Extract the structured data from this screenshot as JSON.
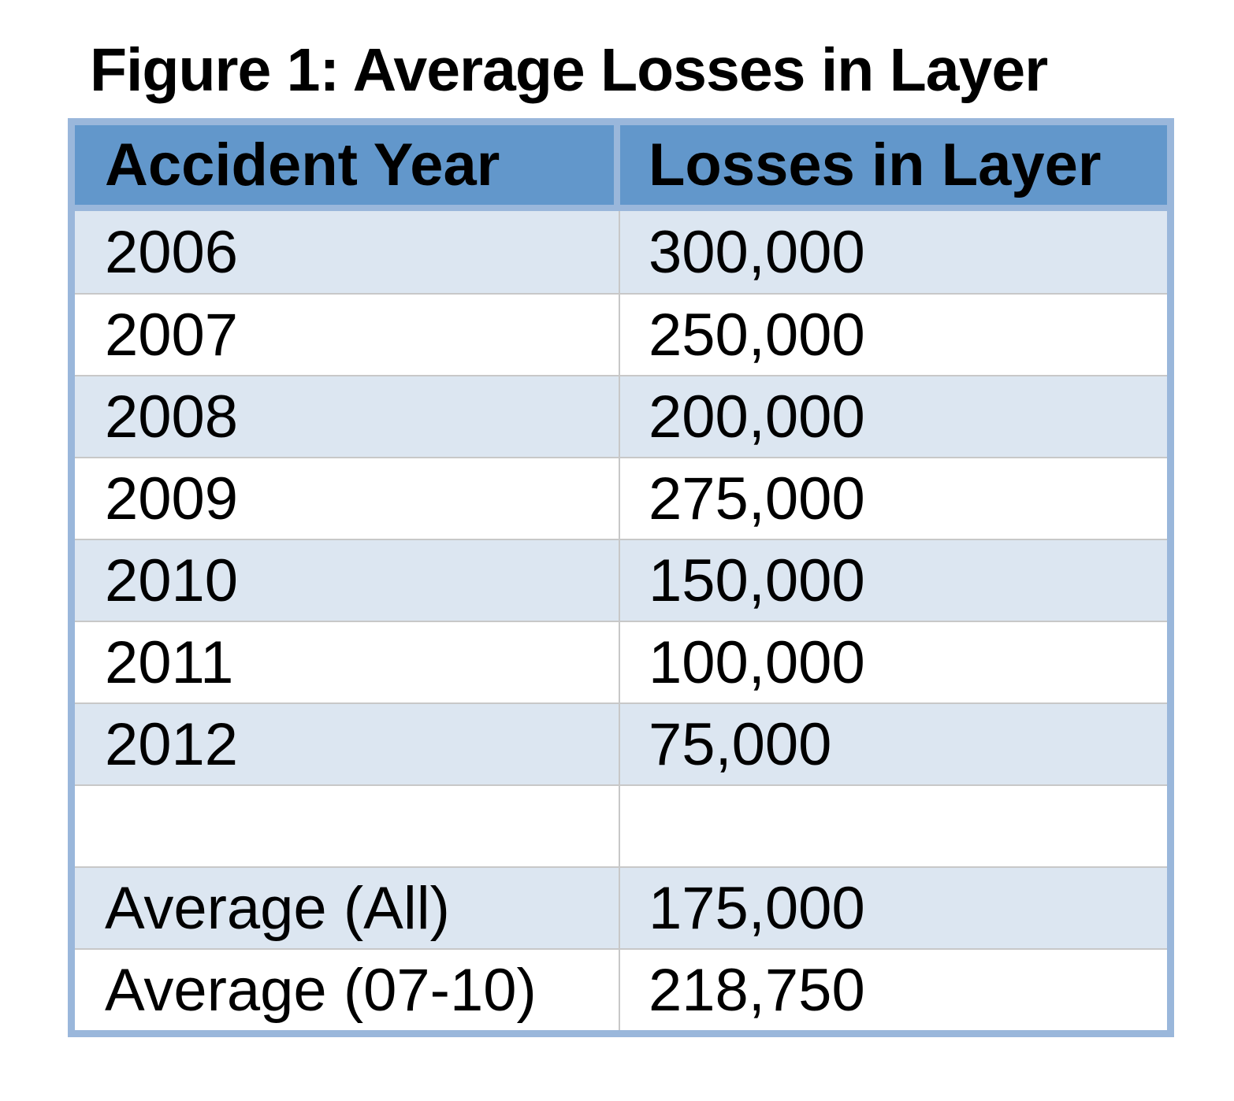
{
  "title": "Figure 1: Average Losses in Layer",
  "colors": {
    "header_fill": "#6297CB",
    "table_border": "#9AB7DB",
    "band_fill": "#DCE6F1",
    "gridline": "#C8C8C8",
    "text": "#000000",
    "background": "#FFFFFF"
  },
  "table": {
    "columns": [
      "Accident Year",
      "Losses in Layer"
    ],
    "rows": [
      {
        "label": "2006",
        "value": "300,000"
      },
      {
        "label": "2007",
        "value": "250,000"
      },
      {
        "label": "2008",
        "value": "200,000"
      },
      {
        "label": "2009",
        "value": "275,000"
      },
      {
        "label": "2010",
        "value": "150,000"
      },
      {
        "label": "2011",
        "value": "100,000"
      },
      {
        "label": "2012",
        "value": "75,000"
      },
      {
        "label": "",
        "value": ""
      },
      {
        "label": "Average (All)",
        "value": "175,000"
      },
      {
        "label": "Average (07-10)",
        "value": "218,750"
      }
    ]
  },
  "chart_data": {
    "type": "table",
    "title": "Figure 1: Average Losses in Layer",
    "columns": [
      "Accident Year",
      "Losses in Layer"
    ],
    "rows": [
      [
        "2006",
        300000
      ],
      [
        "2007",
        250000
      ],
      [
        "2008",
        200000
      ],
      [
        "2009",
        275000
      ],
      [
        "2010",
        150000
      ],
      [
        "2011",
        100000
      ],
      [
        "2012",
        75000
      ],
      [
        "",
        null
      ],
      [
        "Average (All)",
        175000
      ],
      [
        "Average (07-10)",
        218750
      ]
    ]
  }
}
